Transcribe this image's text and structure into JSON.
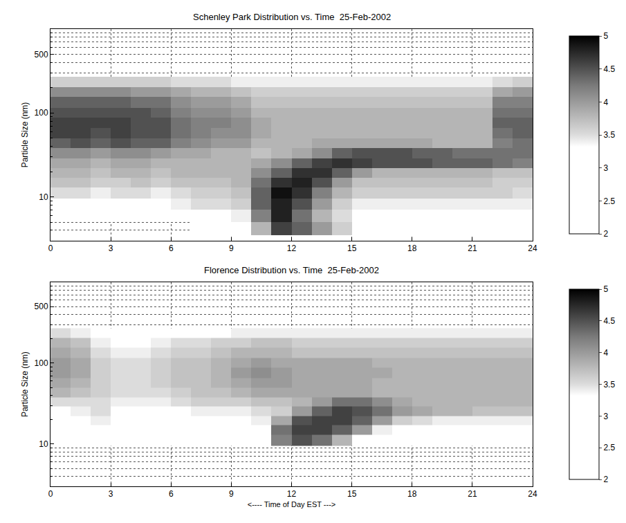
{
  "chart_data": [
    {
      "type": "heatmap",
      "title": "Schenley Park Distribution vs. Time  25-Feb-2002",
      "ylabel": "Particle Size (nm)",
      "log": "y",
      "grid": true,
      "xlim": [
        0,
        24
      ],
      "xticks": [
        0,
        3,
        6,
        9,
        12,
        15,
        18,
        21,
        24
      ],
      "ylim": [
        3,
        1000
      ],
      "yticks": [
        10,
        100,
        500
      ],
      "minor_yticks": [
        4,
        5,
        6,
        7,
        8,
        9,
        20,
        30,
        40,
        50,
        60,
        70,
        80,
        90,
        200,
        300,
        400,
        600,
        700,
        800,
        900
      ],
      "x_edges": [
        0,
        1,
        2,
        3,
        4,
        5,
        6,
        7,
        8,
        9,
        10,
        11,
        12,
        13,
        14,
        15,
        16,
        17,
        18,
        19,
        20,
        21,
        22,
        23,
        24
      ],
      "y_edges": [
        3.5,
        5,
        7,
        9.5,
        13,
        17,
        22,
        29,
        38,
        50,
        66,
        88,
        115,
        155,
        205,
        270
      ],
      "z": [
        [
          null,
          null,
          null,
          null,
          null,
          null,
          null,
          3.0,
          3.0,
          3.0,
          3.8,
          4.6,
          4.4,
          4.0,
          3.6,
          3.2,
          3.0,
          3.0,
          3.0,
          3.0,
          3.0,
          3.0,
          3.0,
          3.0
        ],
        [
          3.0,
          3.0,
          3.0,
          3.0,
          3.0,
          3.0,
          3.1,
          3.2,
          3.3,
          3.4,
          4.2,
          4.8,
          4.3,
          3.8,
          3.5,
          3.3,
          3.2,
          3.2,
          3.2,
          3.2,
          3.2,
          3.2,
          3.2,
          3.2
        ],
        [
          3.3,
          3.3,
          3.3,
          3.3,
          3.3,
          3.3,
          3.4,
          3.5,
          3.5,
          3.6,
          4.4,
          4.8,
          4.5,
          4.0,
          3.6,
          3.4,
          3.4,
          3.4,
          3.4,
          3.4,
          3.4,
          3.4,
          3.4,
          3.4
        ],
        [
          3.5,
          3.5,
          3.4,
          3.5,
          3.5,
          3.4,
          3.5,
          3.6,
          3.6,
          3.7,
          4.4,
          4.9,
          4.7,
          4.2,
          3.8,
          3.6,
          3.6,
          3.6,
          3.6,
          3.6,
          3.6,
          3.6,
          3.6,
          3.5
        ],
        [
          3.7,
          3.7,
          3.6,
          3.6,
          3.7,
          3.6,
          3.7,
          3.7,
          3.7,
          3.8,
          4.3,
          4.7,
          4.8,
          4.5,
          4.0,
          3.7,
          3.7,
          3.7,
          3.7,
          3.7,
          3.7,
          3.7,
          3.6,
          3.6
        ],
        [
          3.8,
          3.8,
          3.7,
          3.8,
          3.8,
          3.7,
          3.8,
          3.8,
          3.8,
          3.8,
          4.1,
          4.4,
          4.7,
          4.7,
          4.4,
          4.0,
          3.8,
          3.8,
          3.8,
          3.8,
          3.8,
          3.8,
          3.7,
          3.7
        ],
        [
          3.9,
          3.9,
          3.8,
          3.9,
          3.9,
          3.8,
          3.8,
          3.8,
          3.8,
          3.8,
          3.9,
          4.1,
          4.4,
          4.6,
          4.7,
          4.6,
          4.5,
          4.5,
          4.5,
          4.4,
          4.4,
          4.4,
          4.3,
          4.2
        ],
        [
          4.1,
          4.1,
          4.0,
          4.1,
          4.1,
          4.0,
          3.9,
          3.9,
          3.8,
          3.8,
          3.7,
          3.8,
          3.9,
          4.1,
          4.4,
          4.5,
          4.5,
          4.5,
          4.4,
          4.4,
          4.3,
          4.3,
          4.3,
          4.3
        ],
        [
          4.4,
          4.5,
          4.4,
          4.5,
          4.4,
          4.4,
          4.2,
          4.1,
          4.0,
          4.0,
          3.8,
          3.8,
          3.8,
          3.9,
          3.9,
          3.9,
          3.9,
          3.9,
          3.9,
          3.8,
          3.8,
          3.8,
          4.2,
          4.3
        ],
        [
          4.6,
          4.6,
          4.5,
          4.6,
          4.5,
          4.5,
          4.3,
          4.2,
          4.1,
          4.1,
          3.9,
          3.8,
          3.8,
          3.8,
          3.8,
          3.8,
          3.8,
          3.8,
          3.8,
          3.8,
          3.8,
          3.8,
          4.3,
          4.4
        ],
        [
          4.6,
          4.6,
          4.6,
          4.6,
          4.5,
          4.5,
          4.3,
          4.2,
          4.2,
          4.1,
          3.9,
          3.8,
          3.8,
          3.8,
          3.8,
          3.8,
          3.8,
          3.8,
          3.8,
          3.8,
          3.8,
          3.8,
          4.4,
          4.4
        ],
        [
          4.5,
          4.5,
          4.5,
          4.5,
          4.5,
          4.4,
          4.2,
          4.1,
          4.1,
          4.0,
          3.8,
          3.8,
          3.8,
          3.8,
          3.8,
          3.8,
          3.8,
          3.8,
          3.8,
          3.8,
          3.8,
          3.8,
          4.3,
          4.3
        ],
        [
          4.4,
          4.4,
          4.4,
          4.4,
          4.3,
          4.3,
          4.1,
          4.0,
          4.0,
          3.9,
          3.7,
          3.7,
          3.7,
          3.7,
          3.7,
          3.7,
          3.7,
          3.7,
          3.7,
          3.7,
          3.7,
          3.7,
          4.2,
          4.2
        ],
        [
          4.1,
          4.1,
          4.1,
          4.1,
          4.0,
          4.0,
          3.9,
          3.8,
          3.8,
          3.7,
          3.6,
          3.6,
          3.6,
          3.6,
          3.6,
          3.6,
          3.6,
          3.6,
          3.6,
          3.6,
          3.6,
          3.6,
          3.9,
          4.0
        ],
        [
          3.6,
          3.6,
          3.6,
          3.6,
          3.6,
          3.6,
          3.5,
          3.5,
          3.5,
          3.4,
          3.4,
          3.4,
          3.4,
          3.4,
          3.4,
          3.4,
          3.4,
          3.4,
          3.4,
          3.4,
          3.4,
          3.4,
          3.5,
          3.6
        ]
      ],
      "colorbar": {
        "range": [
          2,
          5
        ],
        "ticks": [
          2,
          2.5,
          3,
          3.5,
          4,
          4.5,
          5
        ]
      }
    },
    {
      "type": "heatmap",
      "title": "Florence Distribution vs. Time  25-Feb-2002",
      "xlabel": "<---- Time of Day EST --->",
      "ylabel": "Particle Size (nm)",
      "log": "y",
      "grid": true,
      "xlim": [
        0,
        24
      ],
      "xticks": [
        0,
        3,
        6,
        9,
        12,
        15,
        18,
        21,
        24
      ],
      "ylim": [
        3,
        1000
      ],
      "yticks": [
        10,
        100,
        500
      ],
      "minor_yticks": [
        4,
        5,
        6,
        7,
        8,
        9,
        20,
        30,
        40,
        50,
        60,
        70,
        80,
        90,
        200,
        300,
        400,
        600,
        700,
        800,
        900
      ],
      "x_edges": [
        0,
        1,
        2,
        3,
        4,
        5,
        6,
        7,
        8,
        9,
        10,
        11,
        12,
        13,
        14,
        15,
        16,
        17,
        18,
        19,
        20,
        21,
        22,
        23,
        24
      ],
      "y_edges": [
        3.5,
        5,
        7,
        9.5,
        13,
        17,
        22,
        29,
        38,
        50,
        66,
        88,
        115,
        155,
        205,
        270
      ],
      "z": [
        [
          null,
          null,
          null,
          null,
          null,
          null,
          null,
          null,
          null,
          null,
          null,
          null,
          null,
          null,
          null,
          null,
          null,
          null,
          null,
          null,
          null,
          null,
          null,
          null
        ],
        [
          null,
          null,
          null,
          null,
          null,
          null,
          null,
          null,
          null,
          null,
          null,
          null,
          null,
          null,
          null,
          null,
          null,
          null,
          null,
          null,
          null,
          null,
          null,
          null
        ],
        [
          null,
          null,
          null,
          null,
          null,
          null,
          null,
          null,
          null,
          null,
          null,
          null,
          null,
          null,
          null,
          null,
          null,
          null,
          null,
          null,
          null,
          null,
          null,
          null
        ],
        [
          3.0,
          3.0,
          3.0,
          3.0,
          3.0,
          3.0,
          3.0,
          3.0,
          3.0,
          3.0,
          3.0,
          4.2,
          4.5,
          4.3,
          3.8,
          3.3,
          3.0,
          3.0,
          3.0,
          3.0,
          3.0,
          3.0,
          3.0,
          3.0
        ],
        [
          3.1,
          3.1,
          3.1,
          3.1,
          3.1,
          3.1,
          3.1,
          3.1,
          3.1,
          3.1,
          3.2,
          4.3,
          4.6,
          4.6,
          4.4,
          4.0,
          3.4,
          3.2,
          3.1,
          3.1,
          3.1,
          3.1,
          3.1,
          3.1
        ],
        [
          3.2,
          3.3,
          3.4,
          3.2,
          3.2,
          3.2,
          3.2,
          3.3,
          3.3,
          3.3,
          3.4,
          3.9,
          4.5,
          4.6,
          4.6,
          4.4,
          4.0,
          3.6,
          3.5,
          3.4,
          3.4,
          3.4,
          3.4,
          3.4
        ],
        [
          3.3,
          3.4,
          3.5,
          3.3,
          3.3,
          3.3,
          3.3,
          3.4,
          3.4,
          3.4,
          3.5,
          3.6,
          4.0,
          4.4,
          4.6,
          4.5,
          4.3,
          4.0,
          3.9,
          3.8,
          3.8,
          3.7,
          3.7,
          3.7
        ],
        [
          3.5,
          3.5,
          3.5,
          3.4,
          3.4,
          3.4,
          3.5,
          3.6,
          3.6,
          3.6,
          3.7,
          3.7,
          3.8,
          4.0,
          4.3,
          4.3,
          4.1,
          3.9,
          3.8,
          3.8,
          3.8,
          3.8,
          3.8,
          3.8
        ],
        [
          3.8,
          3.7,
          3.6,
          3.5,
          3.5,
          3.5,
          3.6,
          3.7,
          3.7,
          3.8,
          3.9,
          3.9,
          3.9,
          3.9,
          3.9,
          3.9,
          3.8,
          3.8,
          3.8,
          3.8,
          3.8,
          3.8,
          3.8,
          3.8
        ],
        [
          3.9,
          3.8,
          3.6,
          3.5,
          3.5,
          3.6,
          3.7,
          3.7,
          3.8,
          3.9,
          4.0,
          4.0,
          3.9,
          3.9,
          3.9,
          3.9,
          3.8,
          3.8,
          3.8,
          3.8,
          3.8,
          3.8,
          3.8,
          3.8
        ],
        [
          4.0,
          3.9,
          3.6,
          3.5,
          3.5,
          3.6,
          3.7,
          3.7,
          3.8,
          4.0,
          4.1,
          4.0,
          3.9,
          3.9,
          3.9,
          3.9,
          3.9,
          3.8,
          3.8,
          3.8,
          3.8,
          3.8,
          3.8,
          3.8
        ],
        [
          4.0,
          3.9,
          3.6,
          3.5,
          3.5,
          3.6,
          3.7,
          3.7,
          3.8,
          3.9,
          4.0,
          3.9,
          3.9,
          3.9,
          3.9,
          3.9,
          3.8,
          3.8,
          3.8,
          3.8,
          3.8,
          3.8,
          3.8,
          3.8
        ],
        [
          3.9,
          3.8,
          3.5,
          3.4,
          3.4,
          3.5,
          3.6,
          3.6,
          3.7,
          3.8,
          3.8,
          3.8,
          3.7,
          3.7,
          3.7,
          3.7,
          3.7,
          3.7,
          3.7,
          3.7,
          3.7,
          3.7,
          3.7,
          3.7
        ],
        [
          3.8,
          3.7,
          3.4,
          3.3,
          3.3,
          3.4,
          3.5,
          3.5,
          3.6,
          3.6,
          3.7,
          3.7,
          3.6,
          3.6,
          3.6,
          3.6,
          3.6,
          3.6,
          3.6,
          3.6,
          3.6,
          3.6,
          3.6,
          3.6
        ],
        [
          3.5,
          3.4,
          3.2,
          3.1,
          3.1,
          3.2,
          3.3,
          3.3,
          3.3,
          3.4,
          3.4,
          3.4,
          3.4,
          3.4,
          3.4,
          3.4,
          3.4,
          3.4,
          3.4,
          3.4,
          3.4,
          3.4,
          3.4,
          3.4
        ]
      ],
      "colorbar": {
        "range": [
          2,
          5
        ],
        "ticks": [
          2,
          2.5,
          3,
          3.5,
          4,
          4.5,
          5
        ]
      }
    }
  ]
}
